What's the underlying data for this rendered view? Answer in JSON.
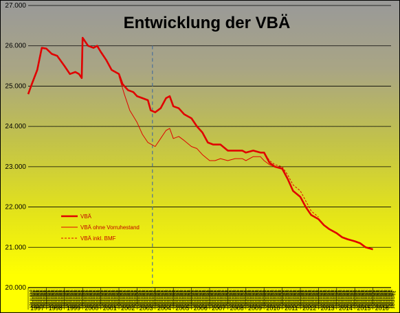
{
  "chart_data": {
    "type": "line",
    "title": "Entwicklung der VBÄ",
    "xlabel": "",
    "ylabel": "",
    "ylim": [
      20000,
      27000
    ],
    "y_ticks": [
      "20.000",
      "21.000",
      "22.000",
      "23.000",
      "24.000",
      "25.000",
      "26.000",
      "27.000"
    ],
    "x_ticks": [
      "1997",
      "1998",
      "1999",
      "2000",
      "2001",
      "2002",
      "2003",
      "2004",
      "2005",
      "2006",
      "2007",
      "2008",
      "2009",
      "2010",
      "2011",
      "2012",
      "2013",
      "2014",
      "2015",
      "2016"
    ],
    "x_range": [
      1997.0,
      2017.0
    ],
    "grid": true,
    "legend_position": "lower-left",
    "month_label": "Jänner",
    "reference_line_x": 2004.0,
    "series": [
      {
        "name": "VBÄ",
        "color": "#e00000",
        "style": "solid-thick",
        "points": [
          [
            1997.0,
            24800
          ],
          [
            1997.2,
            25050
          ],
          [
            1997.5,
            25400
          ],
          [
            1997.75,
            25950
          ],
          [
            1998.0,
            25930
          ],
          [
            1998.3,
            25800
          ],
          [
            1998.6,
            25750
          ],
          [
            1999.0,
            25500
          ],
          [
            1999.3,
            25300
          ],
          [
            1999.6,
            25350
          ],
          [
            1999.8,
            25300
          ],
          [
            1999.95,
            25200
          ],
          [
            2000.0,
            26200
          ],
          [
            2000.3,
            26000
          ],
          [
            2000.6,
            25950
          ],
          [
            2000.8,
            26000
          ],
          [
            2001.0,
            25850
          ],
          [
            2001.3,
            25650
          ],
          [
            2001.6,
            25400
          ],
          [
            2002.0,
            25300
          ],
          [
            2002.2,
            25050
          ],
          [
            2002.5,
            24900
          ],
          [
            2002.8,
            24850
          ],
          [
            2003.0,
            24750
          ],
          [
            2003.3,
            24700
          ],
          [
            2003.6,
            24650
          ],
          [
            2003.75,
            24400
          ],
          [
            2004.0,
            24350
          ],
          [
            2004.3,
            24450
          ],
          [
            2004.6,
            24700
          ],
          [
            2004.8,
            24750
          ],
          [
            2005.0,
            24500
          ],
          [
            2005.3,
            24450
          ],
          [
            2005.6,
            24300
          ],
          [
            2006.0,
            24200
          ],
          [
            2006.3,
            24000
          ],
          [
            2006.6,
            23850
          ],
          [
            2006.9,
            23600
          ],
          [
            2007.2,
            23550
          ],
          [
            2007.6,
            23550
          ],
          [
            2008.0,
            23400
          ],
          [
            2008.4,
            23400
          ],
          [
            2008.8,
            23400
          ],
          [
            2009.0,
            23350
          ],
          [
            2009.4,
            23400
          ],
          [
            2009.8,
            23350
          ],
          [
            2010.0,
            23350
          ],
          [
            2010.3,
            23100
          ],
          [
            2010.6,
            23000
          ],
          [
            2011.0,
            22950
          ],
          [
            2011.3,
            22700
          ],
          [
            2011.6,
            22400
          ],
          [
            2012.0,
            22250
          ],
          [
            2012.3,
            22000
          ],
          [
            2012.6,
            21800
          ],
          [
            2013.0,
            21700
          ],
          [
            2013.3,
            21550
          ],
          [
            2013.6,
            21450
          ],
          [
            2014.0,
            21350
          ],
          [
            2014.3,
            21250
          ],
          [
            2014.6,
            21200
          ],
          [
            2015.0,
            21150
          ],
          [
            2015.3,
            21100
          ],
          [
            2015.6,
            21000
          ],
          [
            2016.0,
            20950
          ]
        ]
      },
      {
        "name": "VBÄ ohne Vorruhestand",
        "color": "#e00000",
        "style": "solid-thin",
        "points": [
          [
            2002.0,
            25250
          ],
          [
            2002.3,
            24800
          ],
          [
            2002.6,
            24400
          ],
          [
            2003.0,
            24100
          ],
          [
            2003.3,
            23800
          ],
          [
            2003.6,
            23600
          ],
          [
            2004.0,
            23500
          ],
          [
            2004.3,
            23700
          ],
          [
            2004.6,
            23900
          ],
          [
            2004.8,
            23950
          ],
          [
            2005.0,
            23700
          ],
          [
            2005.3,
            23750
          ],
          [
            2005.6,
            23650
          ],
          [
            2006.0,
            23500
          ],
          [
            2006.3,
            23450
          ],
          [
            2006.6,
            23300
          ],
          [
            2007.0,
            23150
          ],
          [
            2007.3,
            23150
          ],
          [
            2007.6,
            23200
          ],
          [
            2008.0,
            23150
          ],
          [
            2008.4,
            23200
          ],
          [
            2008.8,
            23200
          ],
          [
            2009.0,
            23150
          ],
          [
            2009.4,
            23250
          ],
          [
            2009.8,
            23250
          ],
          [
            2010.0,
            23150
          ],
          [
            2010.3,
            23050
          ],
          [
            2010.6,
            23000
          ],
          [
            2011.0,
            22950
          ],
          [
            2011.3,
            22700
          ],
          [
            2011.6,
            22400
          ],
          [
            2012.0,
            22250
          ],
          [
            2012.3,
            22000
          ],
          [
            2012.6,
            21800
          ],
          [
            2013.0,
            21700
          ]
        ]
      },
      {
        "name": "VBÄ inkl. BMF",
        "color": "#e00000",
        "style": "dashed",
        "points": [
          [
            2010.0,
            23350
          ],
          [
            2010.3,
            23150
          ],
          [
            2010.6,
            23050
          ],
          [
            2011.0,
            23000
          ],
          [
            2011.3,
            22800
          ],
          [
            2011.6,
            22550
          ],
          [
            2012.0,
            22400
          ],
          [
            2012.3,
            22150
          ],
          [
            2012.6,
            21900
          ],
          [
            2013.0,
            21750
          ]
        ]
      }
    ]
  }
}
